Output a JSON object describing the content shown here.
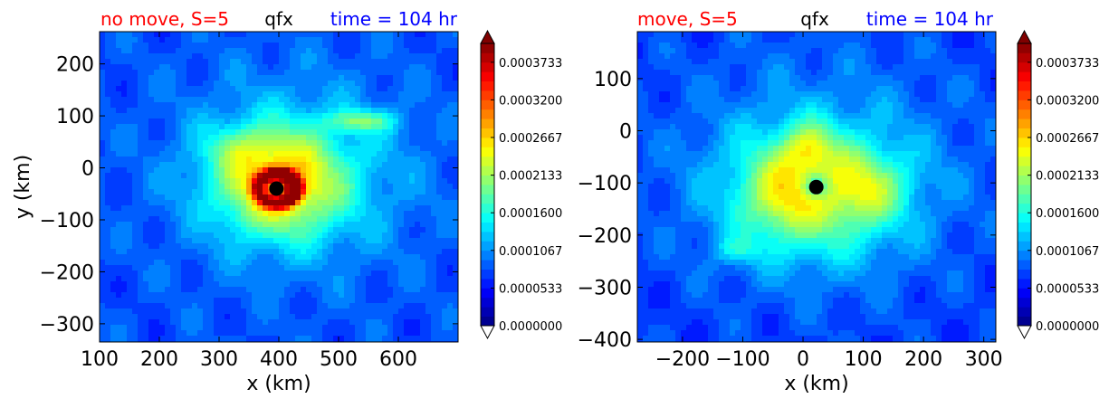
{
  "chart_data": [
    {
      "type": "heatmap",
      "variable": "qfx",
      "title_left": "no move, S=5",
      "title_center": "qfx",
      "title_right": "time = 104 hr",
      "xlabel": "x (km)",
      "ylabel": "y (km)",
      "xlim": [
        100,
        700
      ],
      "ylim": [
        -335,
        262
      ],
      "x_ticks": [
        100,
        200,
        300,
        400,
        500,
        600
      ],
      "y_ticks": [
        200,
        100,
        0,
        -100,
        -200,
        -300
      ],
      "x_tick_labels": [
        "100",
        "200",
        "300",
        "400",
        "500",
        "600"
      ],
      "y_tick_labels": [
        "200",
        "100",
        "0",
        "−100",
        "−200",
        "−300"
      ],
      "center_marker": {
        "x": 396,
        "y": -40
      },
      "colorbar": {
        "min": 0.0,
        "max": 0.0004,
        "extend": "both",
        "ticks": [
          0.0,
          5.33e-05,
          0.0001067,
          0.00016,
          0.0002133,
          0.0002667,
          0.00032,
          0.0003733
        ],
        "tick_labels": [
          "0.0000000",
          "0.0000533",
          "0.0001067",
          "0.0001600",
          "0.0002133",
          "0.0002667",
          "0.0003200",
          "0.0003733"
        ]
      },
      "colors": {
        "title_left": "#ff0000",
        "title_right": "#0000ff",
        "marker": "#000000"
      }
    },
    {
      "type": "heatmap",
      "variable": "qfx",
      "title_left": "move, S=5",
      "title_center": "qfx",
      "title_right": "time = 104 hr",
      "xlabel": "x (km)",
      "ylabel": "",
      "xlim": [
        -275,
        320
      ],
      "ylim": [
        -405,
        190
      ],
      "x_ticks": [
        -200,
        -100,
        0,
        100,
        200,
        300
      ],
      "y_ticks": [
        100,
        0,
        -100,
        -200,
        -300,
        -400
      ],
      "x_tick_labels": [
        "−200",
        "−100",
        "0",
        "100",
        "200",
        "300"
      ],
      "y_tick_labels": [
        "100",
        "0",
        "−100",
        "−200",
        "−300",
        "−400"
      ],
      "center_marker": {
        "x": 22,
        "y": -108
      },
      "colorbar": {
        "min": 0.0,
        "max": 0.0004,
        "extend": "both",
        "ticks": [
          0.0,
          5.33e-05,
          0.0001067,
          0.00016,
          0.0002133,
          0.0002667,
          0.00032,
          0.0003733
        ],
        "tick_labels": [
          "0.0000000",
          "0.0000533",
          "0.0001067",
          "0.0001600",
          "0.0002133",
          "0.0002667",
          "0.0003200",
          "0.0003733"
        ]
      },
      "colors": {
        "title_left": "#ff0000",
        "title_right": "#0000ff",
        "marker": "#000000"
      }
    }
  ]
}
